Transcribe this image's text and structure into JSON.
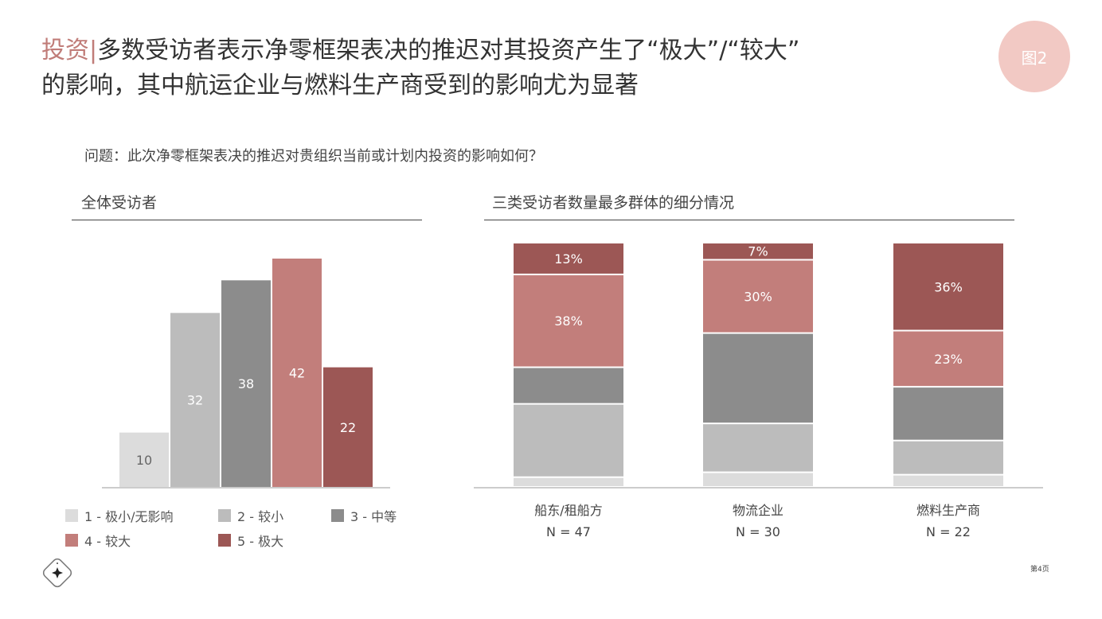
{
  "title": {
    "highlight": "投资|",
    "line1": "多数受访者表示净零框架表决的推迟对其投资产生了“极大”/“较大”",
    "line2": "的影响，其中航运企业与燃料生产商受到的影响尤为显著"
  },
  "badge": "图2",
  "question": "问题：此次净零框架表决的推迟对贵组织当前或计划内投资的影响如何？",
  "page_number": "第4页",
  "colors": {
    "1": "#dcdcdc",
    "2": "#bcbcbc",
    "3": "#8c8c8c",
    "4": "#c27e7b",
    "5": "#9c5755"
  },
  "chart_data": [
    {
      "type": "bar",
      "title": "全体受访者",
      "categories": [
        "1 - 极小/无影响",
        "2 - 较小",
        "3 - 中等",
        "4 - 较大",
        "5 - 极大"
      ],
      "values": [
        10,
        32,
        38,
        42,
        22
      ],
      "labels": [
        "10",
        "32",
        "38",
        "42",
        "22"
      ]
    },
    {
      "type": "bar",
      "stacked": true,
      "title": "三类受访者数量最多群体的细分情况",
      "categories": [
        "船东/租船方",
        "物流企业",
        "燃料生产商"
      ],
      "n_labels": [
        "N = 47",
        "N = 30",
        "N = 22"
      ],
      "series": [
        {
          "name": "1 - 极小/无影响",
          "values": [
            4,
            6,
            5
          ]
        },
        {
          "name": "2 - 较小",
          "values": [
            30,
            20,
            14
          ]
        },
        {
          "name": "3 - 中等",
          "values": [
            15,
            37,
            22
          ]
        },
        {
          "name": "4 - 较大",
          "values": [
            38,
            30,
            23
          ],
          "labels": [
            "38%",
            "30%",
            "23%"
          ]
        },
        {
          "name": "5 - 极大",
          "values": [
            13,
            7,
            36
          ],
          "labels": [
            "13%",
            "7%",
            "36%"
          ]
        }
      ],
      "ylim": [
        0,
        100
      ]
    }
  ],
  "legend": [
    "1 - 极小/无影响",
    "2 - 较小",
    "3 - 中等",
    "4 - 较大",
    "5 - 极大"
  ]
}
